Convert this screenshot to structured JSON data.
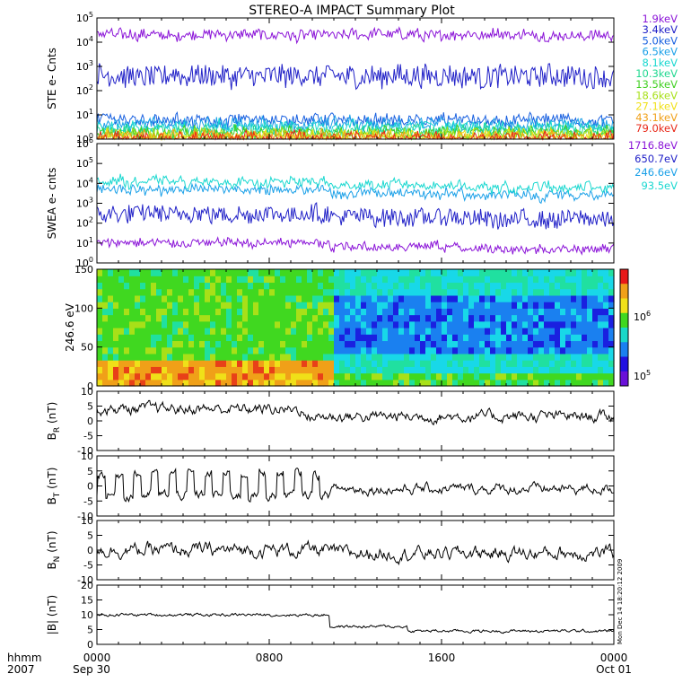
{
  "chart_data": {
    "title": "STEREO-A IMPACT Summary Plot",
    "type": "line",
    "x_ticks": [
      "0000",
      "0800",
      "1600",
      "0000"
    ],
    "x_tick_dates": [
      "Sep 30",
      "",
      "",
      "Oct 01"
    ],
    "footer_left": [
      "hhmm",
      "2007"
    ],
    "side_text": "Mon Dec 14 18:20:12 2009",
    "panels": [
      {
        "id": "ste",
        "type": "line",
        "ylabel": "STE e- Cnts",
        "yscale": "log",
        "ylim": [
          1,
          100000
        ],
        "y_ticks": [
          "10^0",
          "10^1",
          "10^2",
          "10^3",
          "10^4",
          "10^5"
        ],
        "series": [
          {
            "name": "1.9keV",
            "color": "#8b14d8",
            "level": 20000
          },
          {
            "name": "3.4keV",
            "color": "#2222c8",
            "level": 400
          },
          {
            "name": "5.0keV",
            "color": "#1860e0",
            "level": 6
          },
          {
            "name": "6.5keV",
            "color": "#1aa0e8",
            "level": 4
          },
          {
            "name": "8.1keV",
            "color": "#1ad8d0",
            "level": 3
          },
          {
            "name": "10.3keV",
            "color": "#20d890",
            "level": 2.2
          },
          {
            "name": "13.5keV",
            "color": "#40d020",
            "level": 1.8
          },
          {
            "name": "18.6keV",
            "color": "#a8e018",
            "level": 1.5
          },
          {
            "name": "27.1keV",
            "color": "#f0e018",
            "level": 1.3
          },
          {
            "name": "43.1keV",
            "color": "#f0a018",
            "level": 1.2
          },
          {
            "name": "79.0keV",
            "color": "#e82818",
            "level": 1.1
          }
        ]
      },
      {
        "id": "swea",
        "type": "line",
        "ylabel": "SWEA e- cnts",
        "yscale": "log",
        "ylim": [
          1,
          1000000
        ],
        "y_ticks": [
          "10^0",
          "10^1",
          "10^2",
          "10^3",
          "10^4",
          "10^5",
          "10^6"
        ],
        "series": [
          {
            "name": "1716.8eV",
            "color": "#8b14d8",
            "level": 10
          },
          {
            "name": "650.7eV",
            "color": "#2222c8",
            "level": 300
          },
          {
            "name": "246.6eV",
            "color": "#1aa0e8",
            "level": 5000
          },
          {
            "name": "93.5eV",
            "color": "#1ad8d0",
            "level": 12000
          }
        ]
      },
      {
        "id": "pad",
        "type": "heatmap",
        "ylabel": "246.6 eV",
        "ylim": [
          0,
          180
        ],
        "y_ticks": [
          "0",
          "50",
          "100",
          "150"
        ],
        "colorbar_ticks": [
          "10^6",
          "10^5"
        ]
      },
      {
        "id": "br",
        "type": "line",
        "ylabel": "BR (nT)",
        "ylim": [
          -10,
          10
        ],
        "y_ticks": [
          "-10",
          "-5",
          "0",
          "5",
          "10"
        ]
      },
      {
        "id": "bt",
        "type": "line",
        "ylabel": "BT (nT)",
        "ylim": [
          -10,
          10
        ],
        "y_ticks": [
          "-10",
          "-5",
          "0",
          "5",
          "10"
        ]
      },
      {
        "id": "bn",
        "type": "line",
        "ylabel": "BN (nT)",
        "ylim": [
          -10,
          10
        ],
        "y_ticks": [
          "-10",
          "-5",
          "0",
          "5",
          "10"
        ]
      },
      {
        "id": "bmag",
        "type": "line",
        "ylabel": "|B| (nT)",
        "ylim": [
          0,
          20
        ],
        "y_ticks": [
          "0",
          "5",
          "10",
          "15",
          "20"
        ]
      }
    ]
  }
}
